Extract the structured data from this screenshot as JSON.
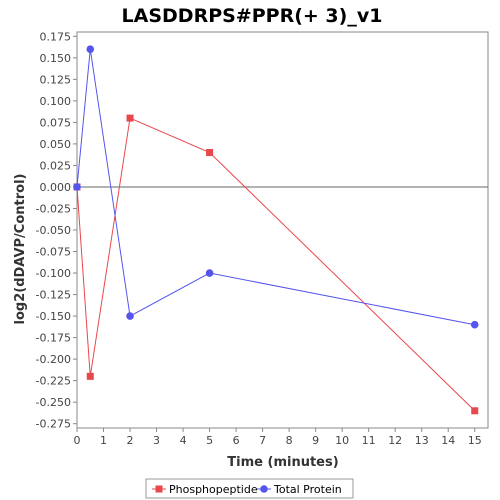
{
  "chart_data": {
    "type": "line",
    "title": "LASDDRPS#PPR(+ 3)_v1",
    "xlabel": "Time (minutes)",
    "ylabel": "log2(dDAVP/Control)",
    "xlim": [
      0,
      15.5
    ],
    "ylim": [
      -0.28,
      0.18
    ],
    "x_ticks": [
      0,
      1,
      2,
      3,
      4,
      5,
      6,
      7,
      8,
      9,
      10,
      11,
      12,
      13,
      14,
      15
    ],
    "y_ticks": [
      0.175,
      0.15,
      0.125,
      0.1,
      0.075,
      0.05,
      0.025,
      0.0,
      -0.025,
      -0.05,
      -0.075,
      -0.1,
      -0.125,
      -0.15,
      -0.175,
      -0.2,
      -0.225,
      -0.25,
      -0.275
    ],
    "y_tick_labels": [
      "0.175",
      "0.150",
      "0.125",
      "0.100",
      "0.075",
      "0.050",
      "0.025",
      "0.000",
      "-0.025",
      "-0.050",
      "-0.075",
      "-0.100",
      "-0.125",
      "-0.150",
      "-0.175",
      "-0.200",
      "-0.225",
      "-0.250",
      "-0.275"
    ],
    "zero_line": true,
    "grid": false,
    "legend_position": "bottom",
    "series": [
      {
        "name": "Phosphopeptide",
        "color": "#e8474b",
        "marker": "square",
        "x": [
          0,
          0.5,
          2,
          5,
          15
        ],
        "y": [
          0.0,
          -0.22,
          0.08,
          0.04,
          -0.26
        ]
      },
      {
        "name": "Total Protein",
        "color": "#5555ee",
        "marker": "circle",
        "x": [
          0,
          0.5,
          2,
          5,
          15
        ],
        "y": [
          0.0,
          0.16,
          -0.15,
          -0.1,
          -0.16
        ]
      }
    ]
  }
}
